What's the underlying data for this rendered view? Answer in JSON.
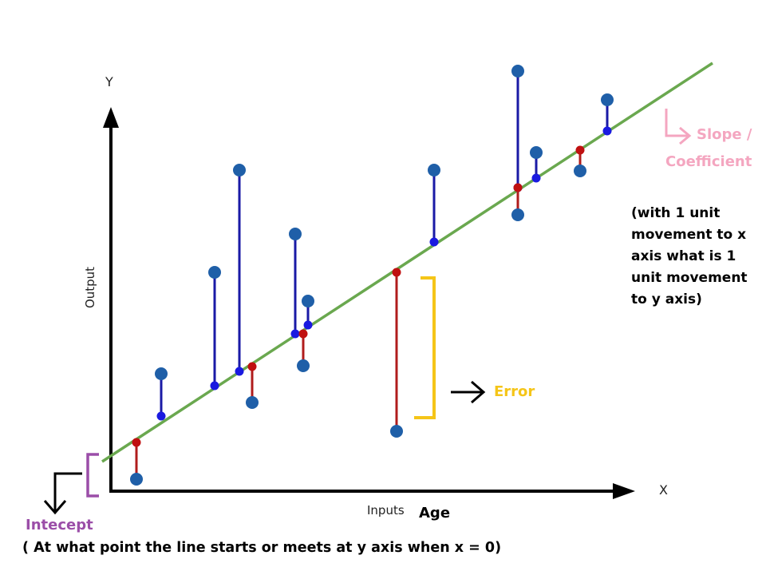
{
  "axes": {
    "y_letter": "Y",
    "x_letter": "X",
    "y_title": "Output",
    "x_title": "Inputs",
    "x_subtitle": "Age"
  },
  "annotations": {
    "slope_line1": "Slope /",
    "slope_line2": "Coefficient",
    "slope_note": [
      "(with 1 unit",
      "movement to x",
      "axis what is 1",
      "unit movement",
      "to y axis)"
    ],
    "error": "Error",
    "intercept": "Intecept",
    "intercept_note": "( At what point the line starts or meets at y axis when x = 0)"
  },
  "colors": {
    "regression_line": "#6aa84f",
    "point": "#1f5fa8",
    "residual_above": "#1a1aa6",
    "residual_below": "#b01c1c",
    "error_bracket": "#f5c518",
    "slope_text": "#f4a6c0",
    "intercept_text": "#9b4ea8",
    "axis": "#000000"
  }
}
